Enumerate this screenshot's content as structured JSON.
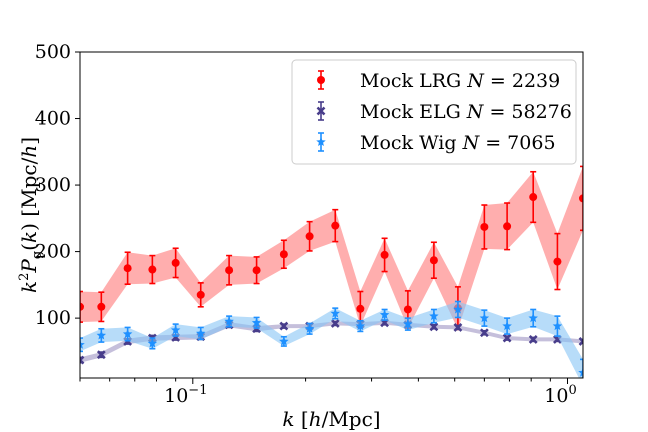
{
  "chart_data": {
    "type": "line",
    "xlabel": "k [h/Mpc]",
    "ylabel": "k²P_g(k) [Mpc/h]",
    "xscale": "log",
    "xlim": [
      0.05,
      1.1
    ],
    "ylim": [
      10,
      500
    ],
    "xticks": [
      {
        "value": 0.1,
        "base": "10",
        "exp": "−1"
      },
      {
        "value": 1.0,
        "base": "10",
        "exp": "0"
      }
    ],
    "yticks": [
      100,
      200,
      300,
      400,
      500
    ],
    "grid": false,
    "legend_position": "top-right",
    "series": [
      {
        "name": "Mock LRG",
        "legend_math": "N",
        "legend_value": "2239",
        "color": "#ff0000",
        "band_color": "#ff6b6b",
        "band_opacity": 0.55,
        "marker": "circle",
        "x": [
          0.05,
          0.057,
          0.067,
          0.078,
          0.09,
          0.105,
          0.125,
          0.148,
          0.175,
          0.205,
          0.24,
          0.28,
          0.325,
          0.375,
          0.44,
          0.51,
          0.6,
          0.69,
          0.81,
          0.94,
          1.1
        ],
        "y": [
          117,
          117,
          175,
          173,
          183,
          135,
          172,
          172,
          196,
          223,
          239,
          114,
          195,
          113,
          187,
          115,
          237,
          238,
          282,
          185,
          280
        ],
        "err": [
          23,
          22,
          24,
          21,
          22,
          18,
          22,
          20,
          21,
          22,
          24,
          26,
          25,
          28,
          27,
          32,
          33,
          35,
          38,
          42,
          48
        ]
      },
      {
        "name": "Mock ELG",
        "legend_math": "N",
        "legend_value": "58276",
        "color": "#483d8b",
        "band_color": "#8b7fb8",
        "band_opacity": 0.5,
        "marker": "x",
        "x": [
          0.05,
          0.057,
          0.067,
          0.078,
          0.09,
          0.105,
          0.125,
          0.148,
          0.175,
          0.205,
          0.24,
          0.28,
          0.325,
          0.375,
          0.44,
          0.51,
          0.6,
          0.69,
          0.81,
          0.94,
          1.1
        ],
        "y": [
          37,
          45,
          65,
          70,
          71,
          72,
          90,
          84,
          88,
          88,
          92,
          91,
          93,
          90,
          87,
          86,
          78,
          70,
          68,
          68,
          65
        ],
        "err": [
          4,
          4,
          4,
          4,
          4,
          4,
          4,
          4,
          3,
          3,
          3,
          3,
          3,
          3,
          3,
          3,
          3,
          3,
          3,
          3,
          3
        ]
      },
      {
        "name": "Mock Wig",
        "legend_math": "N",
        "legend_value": "7065",
        "color": "#1e90ff",
        "band_color": "#87c4f5",
        "band_opacity": 0.6,
        "marker": "star",
        "x": [
          0.05,
          0.057,
          0.067,
          0.078,
          0.09,
          0.105,
          0.125,
          0.148,
          0.175,
          0.205,
          0.24,
          0.28,
          0.325,
          0.375,
          0.44,
          0.51,
          0.6,
          0.69,
          0.81,
          0.94,
          1.1
        ],
        "y": [
          60,
          74,
          76,
          62,
          82,
          77,
          95,
          93,
          65,
          84,
          107,
          88,
          105,
          91,
          103,
          113,
          100,
          88,
          100,
          88,
          18
        ],
        "err": [
          10,
          10,
          10,
          8,
          9,
          9,
          8,
          8,
          7,
          8,
          8,
          8,
          8,
          9,
          10,
          12,
          12,
          12,
          13,
          15,
          20
        ]
      }
    ]
  }
}
